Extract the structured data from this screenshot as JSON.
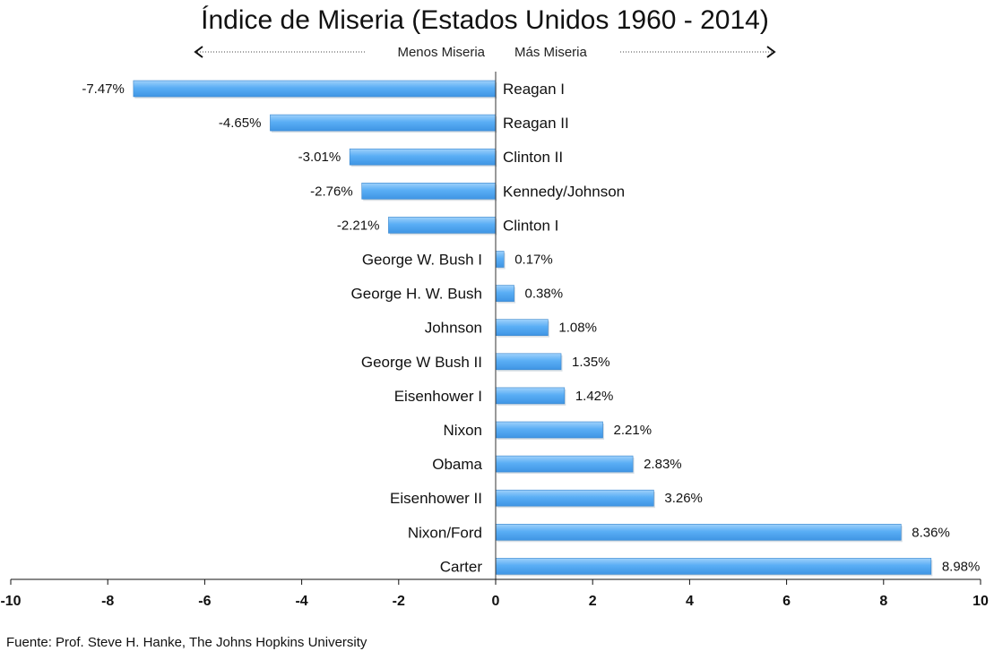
{
  "chart_data": {
    "type": "bar",
    "orientation": "horizontal",
    "title": "Índice de Miseria  (Estados Unidos 1960 - 2014)",
    "legend": {
      "left": "Menos Miseria",
      "right": "Más Miseria"
    },
    "categories": [
      "Reagan I",
      "Reagan II",
      "Clinton II",
      "Kennedy/Johnson",
      "Clinton I",
      "George W. Bush I",
      "George H. W. Bush",
      "Johnson",
      "George W Bush II",
      "Eisenhower I",
      "Nixon",
      "Obama",
      "Eisenhower II",
      "Nixon/Ford",
      "Carter"
    ],
    "values": [
      -7.47,
      -4.65,
      -3.01,
      -2.76,
      -2.21,
      0.17,
      0.38,
      1.08,
      1.35,
      1.42,
      2.21,
      2.83,
      3.26,
      8.36,
      8.98
    ],
    "value_labels": [
      "-7.47%",
      "-4.65%",
      "-3.01%",
      "-2.76%",
      "-2.21%",
      "0.17%",
      "0.38%",
      "1.08%",
      "1.35%",
      "1.42%",
      "2.21%",
      "2.83%",
      "3.26%",
      "8.36%",
      "8.98%"
    ],
    "xlim": [
      -10,
      10
    ],
    "xticks": [
      -10,
      -8,
      -6,
      -4,
      -2,
      0,
      2,
      4,
      6,
      8,
      10
    ],
    "xlabel": "",
    "ylabel": "",
    "grid": false,
    "bar_color": "#5aaef5",
    "source": "Fuente: Prof. Steve H. Hanke, The Johns Hopkins University"
  }
}
